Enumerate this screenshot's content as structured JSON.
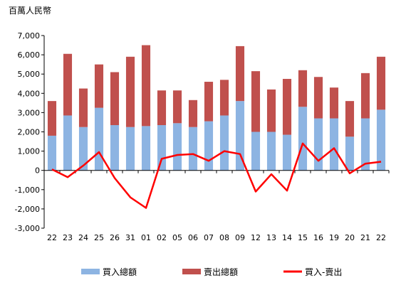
{
  "chart_data": {
    "type": "bar",
    "stacked": true,
    "unit_label": "百萬人民幣",
    "categories": [
      "22",
      "23",
      "24",
      "25",
      "26",
      "31",
      "01",
      "02",
      "05",
      "06",
      "07",
      "08",
      "09",
      "12",
      "13",
      "14",
      "15",
      "16",
      "19",
      "20",
      "21",
      "22"
    ],
    "series": [
      {
        "name": "買入總額",
        "type": "bar",
        "color": "#8db4e2",
        "values": [
          1800,
          2850,
          2250,
          3250,
          2350,
          2250,
          2300,
          2350,
          2450,
          2250,
          2550,
          2850,
          3600,
          2000,
          2000,
          1850,
          3300,
          2700,
          2700,
          1750,
          2700,
          3150
        ]
      },
      {
        "name": "賣出總額",
        "type": "bar",
        "color": "#c0504d",
        "values": [
          1800,
          3200,
          2000,
          2250,
          2750,
          3650,
          4200,
          1800,
          1700,
          1400,
          2050,
          1850,
          2850,
          3150,
          2200,
          2900,
          1900,
          2150,
          1600,
          1850,
          2350,
          2750
        ]
      },
      {
        "name": "買入-賣出",
        "type": "line",
        "color": "#ff0000",
        "values": [
          50,
          -350,
          250,
          950,
          -400,
          -1400,
          -1950,
          600,
          800,
          850,
          500,
          1000,
          850,
          -1100,
          -200,
          -1050,
          1400,
          500,
          1150,
          -150,
          350,
          450
        ]
      }
    ],
    "ylim": [
      -3000,
      7000
    ],
    "yticks": [
      "-3,000",
      "-2,000",
      "-1,000",
      "0",
      "1,000",
      "2,000",
      "3,000",
      "4,000",
      "5,000",
      "6,000",
      "7,000"
    ],
    "ytick_values": [
      -3000,
      -2000,
      -1000,
      0,
      1000,
      2000,
      3000,
      4000,
      5000,
      6000,
      7000
    ],
    "legend": "bottom"
  }
}
